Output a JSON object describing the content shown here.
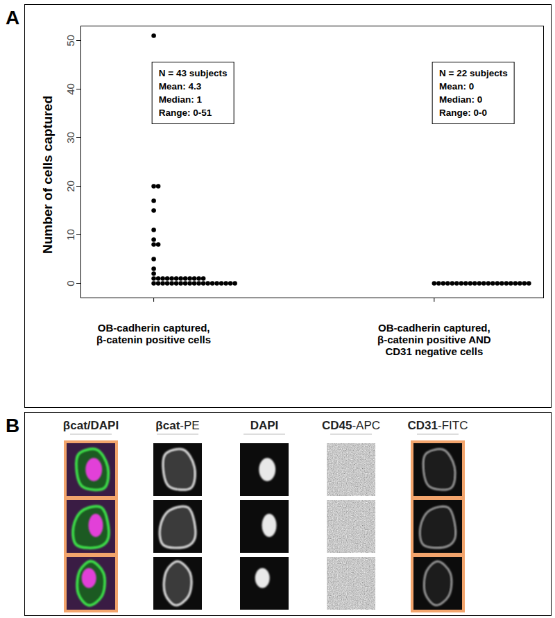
{
  "chart_data": {
    "type": "dot",
    "panel_label": "A",
    "ylabel": "Number of cells captured",
    "categories": [
      "OB-cadherin captured,\nβ-catenin positive cells",
      "OB-cadherin captured,\nβ-catenin positive AND\nCD31 negative cells"
    ],
    "values": [
      [
        51,
        20,
        20,
        17,
        15,
        11,
        9,
        8,
        8,
        5,
        3,
        2,
        1,
        1,
        1,
        1,
        1,
        1,
        1,
        1,
        1,
        1,
        1,
        1,
        0,
        0,
        0,
        0,
        0,
        0,
        0,
        0,
        0,
        0,
        0,
        0,
        0,
        0,
        0,
        0,
        0,
        0,
        0
      ],
      [
        0,
        0,
        0,
        0,
        0,
        0,
        0,
        0,
        0,
        0,
        0,
        0,
        0,
        0,
        0,
        0,
        0,
        0,
        0,
        0,
        0,
        0
      ]
    ],
    "annotations": [
      [
        "N = 43 subjects",
        "Mean: 4.3",
        "Median: 1",
        "Range: 0-51"
      ],
      [
        "N = 22 subjects",
        "Mean: 0",
        "Median: 0",
        "Range: 0-0"
      ]
    ],
    "color": "#000000",
    "ylim": [
      -3,
      53
    ],
    "yticks": [
      0,
      10,
      20,
      30,
      40,
      50
    ]
  },
  "panel_b": {
    "panel_label": "B",
    "columns": [
      "βcat/DAPI",
      "βcat-PE",
      "DAPI",
      "CD45-APC",
      "CD31-FITC"
    ],
    "highlighted_columns": [
      "βcat/DAPI",
      "CD31-FITC"
    ],
    "image_rows": 3
  }
}
